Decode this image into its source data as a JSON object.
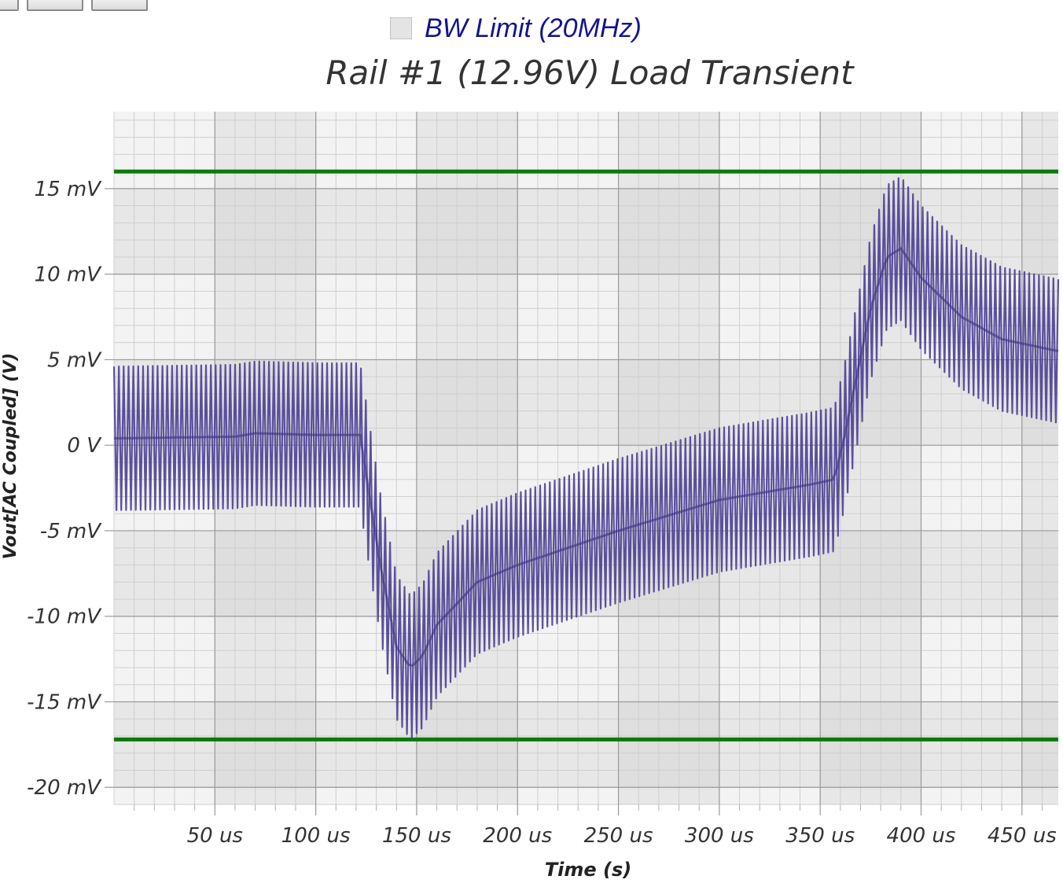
{
  "toolbar": {
    "buttons": [
      "toolbar-button-1",
      "toolbar-button-2",
      "toolbar-button-3"
    ]
  },
  "bw_limit": {
    "label": "BW Limit (20MHz)",
    "checked": false
  },
  "chart_data": {
    "type": "line",
    "title": "Rail #1 (12.96V) Load Transient",
    "xlabel": "Time (s)",
    "ylabel": "Vout[AC Coupled] (V)",
    "xlim": [
      0,
      468
    ],
    "ylim": [
      -21,
      19.5
    ],
    "x_ticks": [
      50,
      100,
      150,
      200,
      250,
      300,
      350,
      400,
      450
    ],
    "x_tick_labels": [
      "50 us",
      "100 us",
      "150 us",
      "200 us",
      "250 us",
      "300 us",
      "350 us",
      "400 us",
      "450 us"
    ],
    "y_ticks": [
      15,
      10,
      5,
      0,
      -5,
      -10,
      -15,
      -20
    ],
    "y_tick_labels": [
      "15 mV",
      "10 mV",
      "5 mV",
      "0 V",
      "-5 mV",
      "-10 mV",
      "-15 mV",
      "-20 mV"
    ],
    "limit_lines": [
      {
        "value": 16,
        "color": "#0a7a0a"
      },
      {
        "value": -17.2,
        "color": "#0a7a0a"
      }
    ],
    "series": [
      {
        "color": "#4b3f94",
        "ripple_pp_mv": 8.4,
        "center_points": [
          [
            0,
            0.4
          ],
          [
            60,
            0.5
          ],
          [
            70,
            0.7
          ],
          [
            100,
            0.6
          ],
          [
            118,
            0.6
          ],
          [
            122,
            0.6
          ],
          [
            126,
            -2.5
          ],
          [
            132,
            -7
          ],
          [
            140,
            -11.8
          ],
          [
            147,
            -13
          ],
          [
            153,
            -12.3
          ],
          [
            160,
            -10.5
          ],
          [
            180,
            -8
          ],
          [
            200,
            -7
          ],
          [
            250,
            -5
          ],
          [
            300,
            -3.2
          ],
          [
            345,
            -2.3
          ],
          [
            357,
            -2
          ],
          [
            362,
            0.5
          ],
          [
            368,
            4
          ],
          [
            375,
            8
          ],
          [
            383,
            11
          ],
          [
            390,
            11.5
          ],
          [
            400,
            9.8
          ],
          [
            420,
            7.5
          ],
          [
            440,
            6.2
          ],
          [
            468,
            5.5
          ]
        ]
      }
    ],
    "grid": true
  }
}
